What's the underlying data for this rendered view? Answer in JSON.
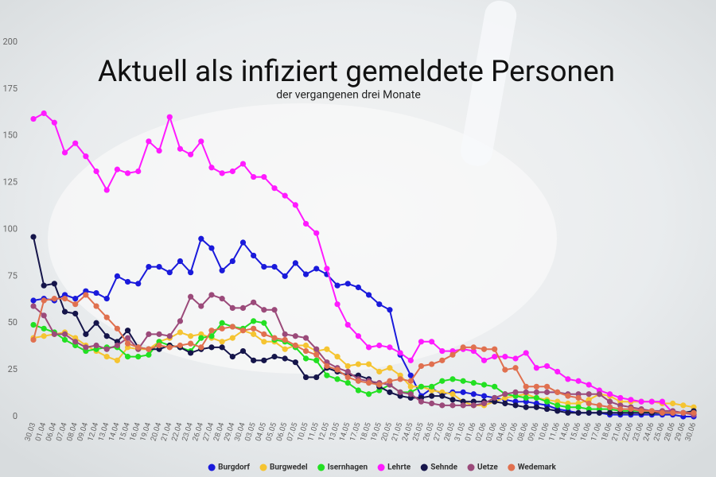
{
  "chart_data": {
    "type": "line",
    "title": "Aktuell als infiziert gemeldete Personen",
    "subtitle": "der vergangenen drei Monate",
    "categories": [
      "30.03",
      "01.04",
      "06.04",
      "07.04",
      "08.04",
      "09.04",
      "12.04",
      "13.04",
      "14.04",
      "15.04",
      "16.04",
      "19.04",
      "20.04",
      "21.04",
      "22.04",
      "23.04",
      "26.04",
      "27.04",
      "28.04",
      "29.04",
      "30.04",
      "03.05",
      "04.05",
      "05.05",
      "06.05",
      "07.05",
      "10.05",
      "11.05",
      "12.05",
      "13.05",
      "14.05",
      "17.05",
      "18.05",
      "19.05",
      "20.05",
      "21.05",
      "24.05",
      "25.05",
      "26.05",
      "27.05",
      "28.05",
      "31.05",
      "01.06",
      "02.06",
      "03.06",
      "04.06",
      "07.06",
      "08.06",
      "09.06",
      "10.06",
      "11.06",
      "14.06",
      "15.06",
      "16.06",
      "17.06",
      "18.06",
      "21.06",
      "22.06",
      "23.06",
      "24.06",
      "25.06",
      "28.06",
      "29.06",
      "30.06"
    ],
    "series": [
      {
        "name": "Burgdorf",
        "color": "#1a1adb",
        "values": [
          62,
          63,
          62,
          65,
          63,
          67,
          66,
          63,
          75,
          72,
          71,
          80,
          80,
          77,
          83,
          77,
          95,
          90,
          78,
          83,
          93,
          86,
          80,
          80,
          75,
          82,
          76,
          79,
          76,
          70,
          71,
          69,
          65,
          60,
          57,
          33,
          22,
          11,
          15,
          12,
          13,
          13,
          12,
          11,
          10,
          9,
          8,
          8,
          7,
          6,
          4,
          3,
          2,
          2,
          2,
          1,
          1,
          1,
          1,
          1,
          1,
          1,
          0,
          0
        ]
      },
      {
        "name": "Burgwedel",
        "color": "#f5c431",
        "values": [
          42,
          43,
          44,
          45,
          42,
          38,
          35,
          32,
          30,
          37,
          36,
          36,
          40,
          42,
          45,
          43,
          44,
          42,
          40,
          42,
          46,
          44,
          40,
          40,
          36,
          38,
          38,
          35,
          36,
          32,
          27,
          28,
          28,
          24,
          26,
          22,
          16,
          16,
          14,
          13,
          12,
          8,
          6,
          6,
          8,
          10,
          11,
          12,
          10,
          9,
          8,
          7,
          7,
          9,
          12,
          11,
          8,
          8,
          8,
          8,
          7,
          7,
          6,
          5
        ]
      },
      {
        "name": "Isernhagen",
        "color": "#22e022",
        "values": [
          49,
          47,
          45,
          41,
          38,
          35,
          36,
          37,
          37,
          32,
          32,
          33,
          40,
          38,
          37,
          35,
          42,
          43,
          50,
          48,
          47,
          51,
          50,
          41,
          40,
          37,
          31,
          30,
          22,
          20,
          18,
          14,
          12,
          14,
          17,
          13,
          13,
          16,
          16,
          19,
          20,
          19,
          18,
          17,
          16,
          12,
          11,
          10,
          10,
          8,
          6,
          5,
          5,
          4,
          4,
          4,
          3,
          3,
          3,
          2,
          2,
          2,
          2,
          2
        ]
      },
      {
        "name": "Lehrte",
        "color": "#ff1aff",
        "values": [
          159,
          162,
          157,
          141,
          146,
          139,
          131,
          121,
          132,
          130,
          131,
          147,
          142,
          160,
          143,
          140,
          147,
          133,
          130,
          131,
          135,
          128,
          128,
          122,
          118,
          113,
          103,
          98,
          79,
          60,
          49,
          43,
          37,
          38,
          37,
          34,
          30,
          40,
          40,
          35,
          35,
          36,
          35,
          30,
          32,
          32,
          31,
          34,
          26,
          27,
          24,
          20,
          19,
          17,
          14,
          12,
          10,
          9,
          8,
          8,
          8,
          2,
          2,
          1
        ]
      },
      {
        "name": "Sehnde",
        "color": "#15154a",
        "values": [
          96,
          70,
          71,
          56,
          55,
          44,
          50,
          43,
          40,
          46,
          37,
          36,
          36,
          38,
          37,
          34,
          36,
          37,
          37,
          32,
          35,
          30,
          30,
          32,
          31,
          29,
          21,
          21,
          26,
          24,
          22,
          22,
          20,
          16,
          13,
          11,
          10,
          10,
          11,
          11,
          9,
          8,
          8,
          8,
          8,
          7,
          6,
          5,
          5,
          4,
          3,
          2,
          2,
          2,
          2,
          2,
          2,
          2,
          2,
          2,
          2,
          2,
          2,
          3
        ]
      },
      {
        "name": "Uetze",
        "color": "#9b4a7a",
        "values": [
          59,
          54,
          44,
          44,
          40,
          37,
          38,
          36,
          38,
          42,
          36,
          44,
          44,
          43,
          51,
          64,
          59,
          65,
          63,
          58,
          58,
          61,
          57,
          57,
          44,
          43,
          42,
          36,
          29,
          26,
          24,
          20,
          19,
          18,
          17,
          13,
          12,
          8,
          7,
          6,
          6,
          6,
          6,
          7,
          10,
          12,
          13,
          13,
          13,
          13,
          13,
          12,
          12,
          12,
          12,
          8,
          6,
          5,
          4,
          3,
          3,
          3,
          2,
          1
        ]
      },
      {
        "name": "Wedemark",
        "color": "#e0704f",
        "values": [
          41,
          62,
          63,
          63,
          60,
          65,
          59,
          53,
          47,
          39,
          37,
          36,
          38,
          37,
          38,
          39,
          37,
          46,
          47,
          48,
          46,
          47,
          44,
          42,
          41,
          38,
          35,
          33,
          27,
          25,
          21,
          19,
          18,
          17,
          19,
          20,
          19,
          27,
          28,
          30,
          33,
          37,
          37,
          36,
          36,
          25,
          26,
          16,
          16,
          16,
          13,
          11,
          10,
          7,
          6,
          5,
          4,
          4,
          3,
          3,
          2,
          2,
          2,
          2
        ]
      }
    ],
    "ylim": [
      0,
      200
    ],
    "yticks": [
      0,
      25,
      50,
      75,
      100,
      125,
      150,
      175,
      200
    ],
    "grid": false,
    "legend": "bottom"
  }
}
